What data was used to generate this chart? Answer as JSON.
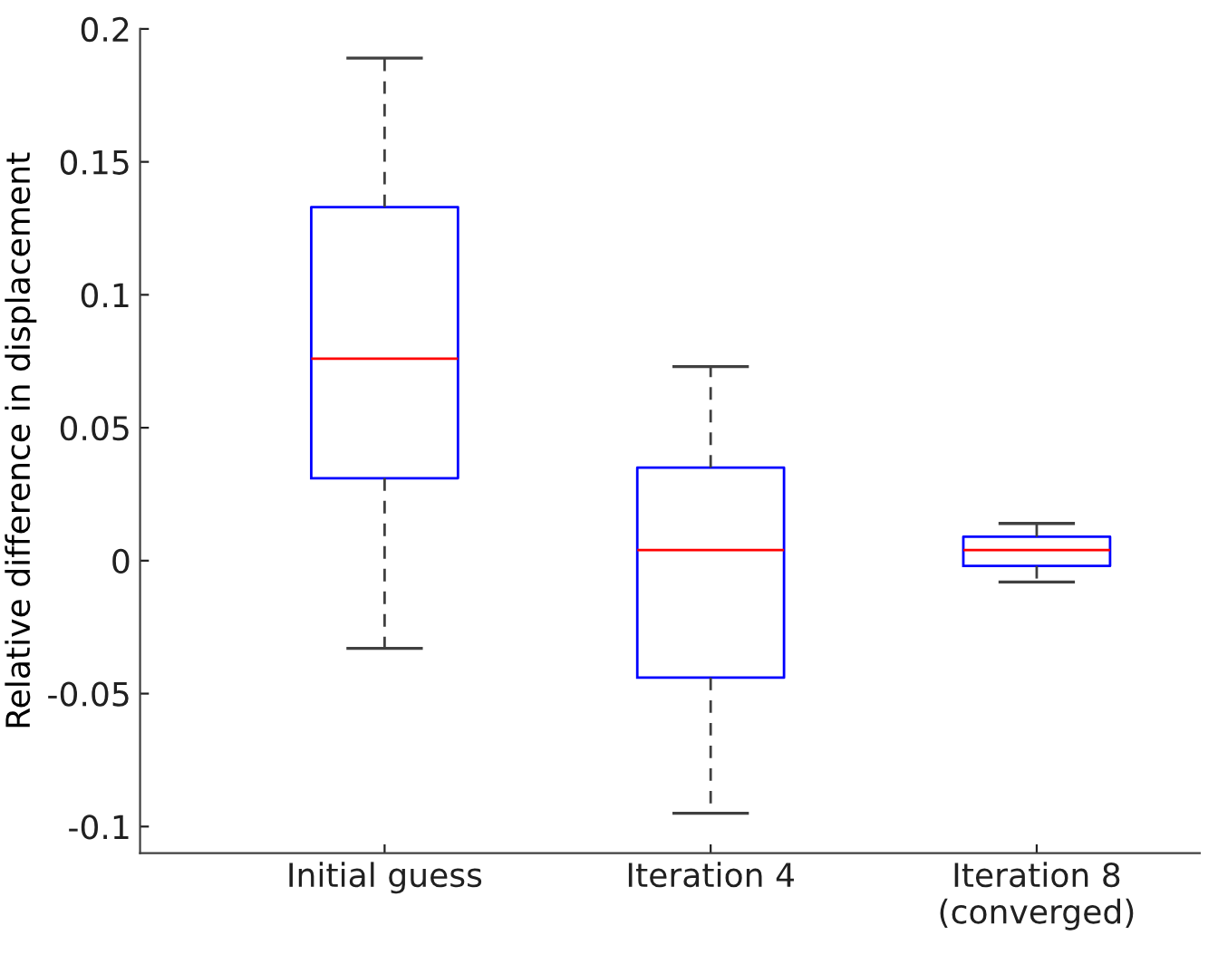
{
  "chart_data": {
    "type": "box",
    "ylabel": "Relative difference in displacement",
    "categories": [
      "Initial guess",
      "Iteration 4",
      "Iteration 8\n(converged)"
    ],
    "boxes": [
      {
        "low": -0.033,
        "q1": 0.031,
        "median": 0.076,
        "q3": 0.133,
        "high": 0.189
      },
      {
        "low": -0.095,
        "q1": -0.044,
        "median": 0.004,
        "q3": 0.035,
        "high": 0.073
      },
      {
        "low": -0.008,
        "q1": -0.002,
        "median": 0.004,
        "q3": 0.009,
        "high": 0.014
      }
    ],
    "color": "#0000ff",
    "ylim": [
      -0.11,
      0.2
    ],
    "yticks": [
      -0.1,
      -0.05,
      0,
      0.05,
      0.1,
      0.15,
      0.2
    ],
    "grid": false
  }
}
